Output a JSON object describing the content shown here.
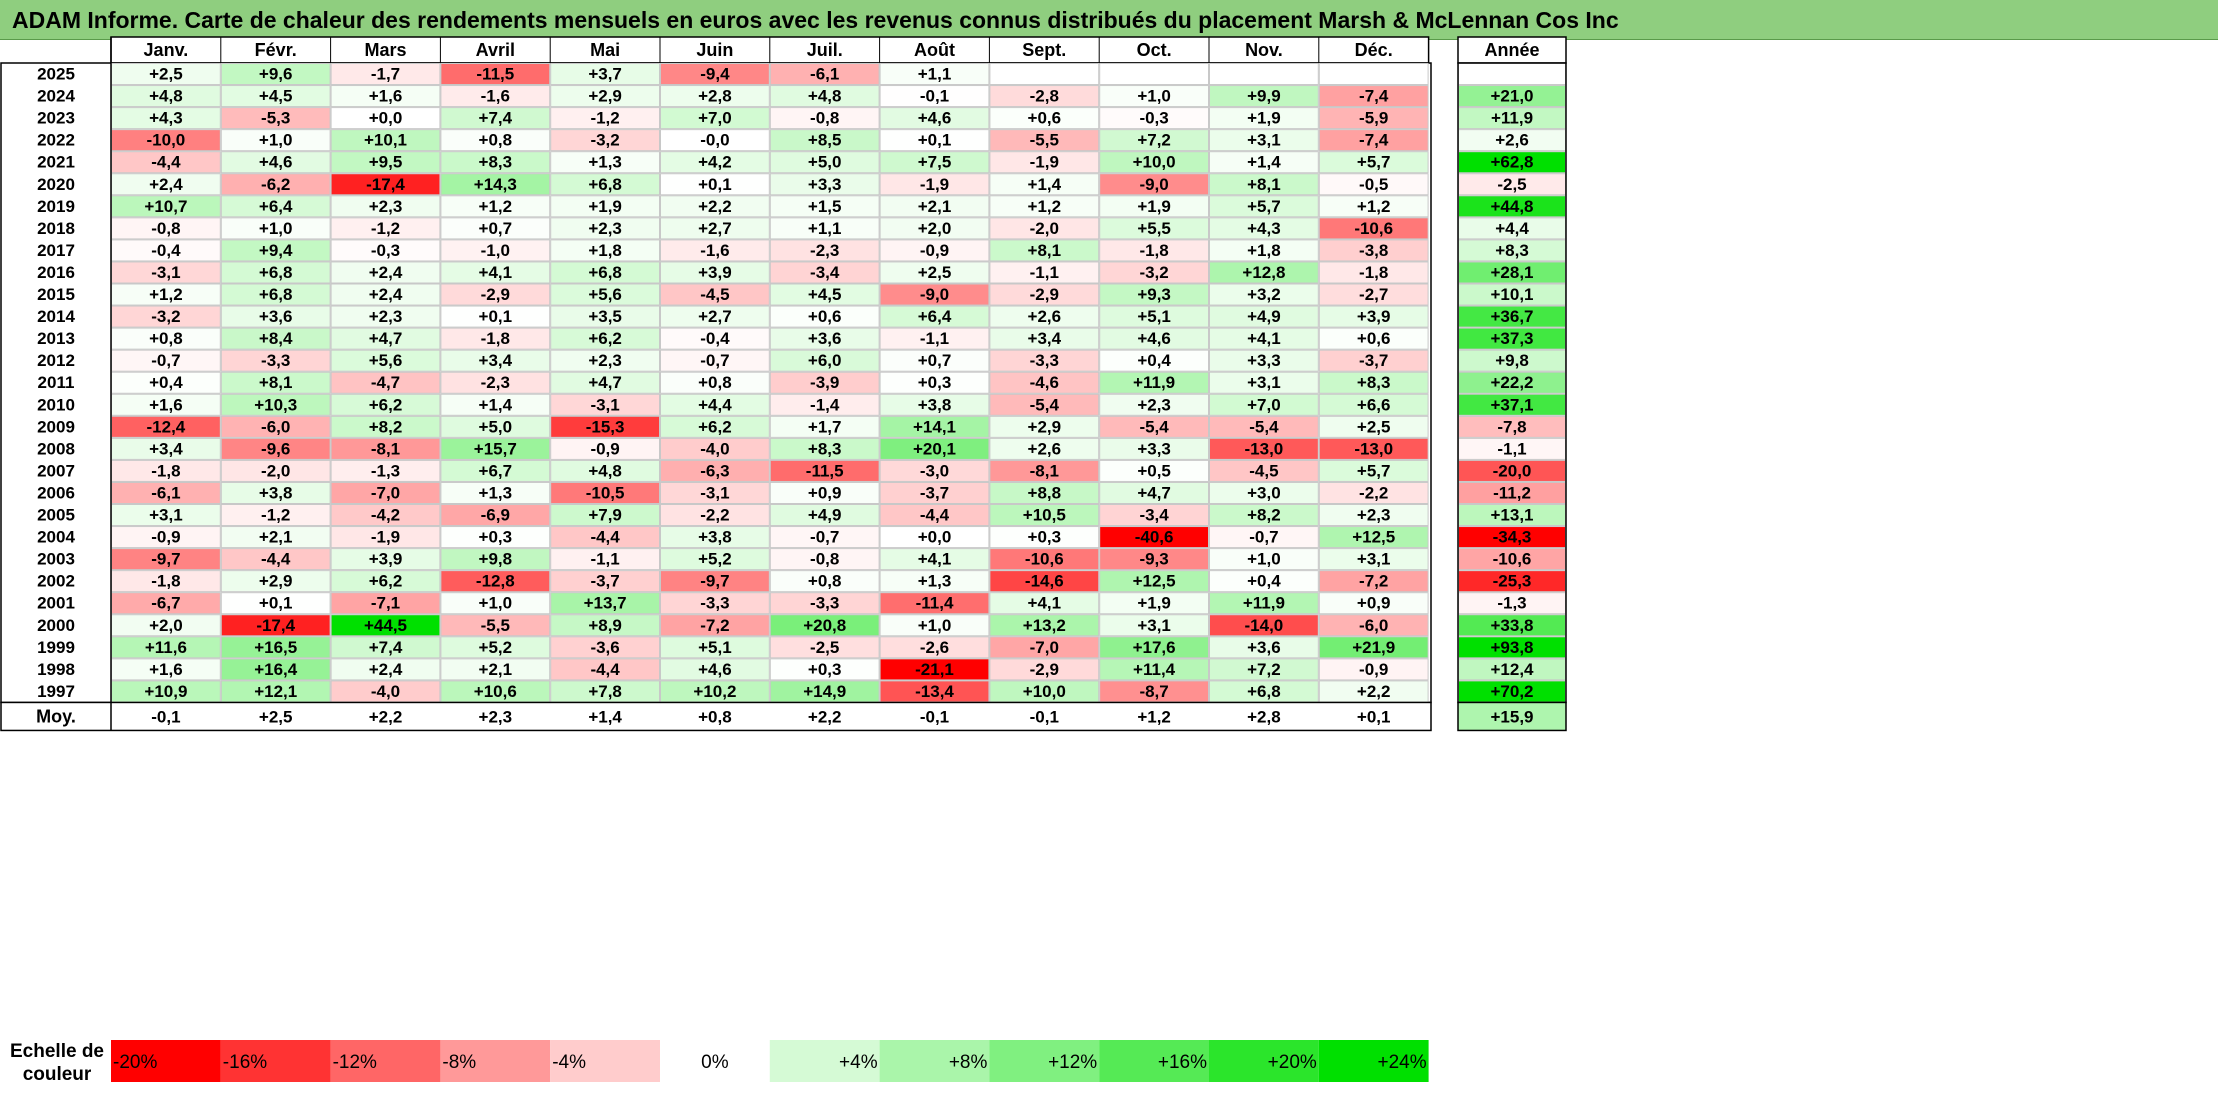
{
  "title": "ADAM Informe. Carte de chaleur des rendements mensuels en euros avec les revenus connus distribués du placement Marsh & McLennan Cos Inc",
  "chart_data": {
    "type": "heatmap",
    "months": [
      "Janv.",
      "Févr.",
      "Mars",
      "Avril",
      "Mai",
      "Juin",
      "Juil.",
      "Août",
      "Sept.",
      "Oct.",
      "Nov.",
      "Déc."
    ],
    "year_header": "Année",
    "rows": [
      {
        "year": "2025",
        "values": [
          "+2,5",
          "+9,6",
          "-1,7",
          "-11,5",
          "+3,7",
          "-9,4",
          "-6,1",
          "+1,1",
          "",
          "",
          "",
          ""
        ],
        "annual": ""
      },
      {
        "year": "2024",
        "values": [
          "+4,8",
          "+4,5",
          "+1,6",
          "-1,6",
          "+2,9",
          "+2,8",
          "+4,8",
          "-0,1",
          "-2,8",
          "+1,0",
          "+9,9",
          "-7,4"
        ],
        "annual": "+21,0"
      },
      {
        "year": "2023",
        "values": [
          "+4,3",
          "-5,3",
          "+0,0",
          "+7,4",
          "-1,2",
          "+7,0",
          "-0,8",
          "+4,6",
          "+0,6",
          "-0,3",
          "+1,9",
          "-5,9"
        ],
        "annual": "+11,9"
      },
      {
        "year": "2022",
        "values": [
          "-10,0",
          "+1,0",
          "+10,1",
          "+0,8",
          "-3,2",
          "-0,0",
          "+8,5",
          "+0,1",
          "-5,5",
          "+7,2",
          "+3,1",
          "-7,4"
        ],
        "annual": "+2,6"
      },
      {
        "year": "2021",
        "values": [
          "-4,4",
          "+4,6",
          "+9,5",
          "+8,3",
          "+1,3",
          "+4,2",
          "+5,0",
          "+7,5",
          "-1,9",
          "+10,0",
          "+1,4",
          "+5,7"
        ],
        "annual": "+62,8"
      },
      {
        "year": "2020",
        "values": [
          "+2,4",
          "-6,2",
          "-17,4",
          "+14,3",
          "+6,8",
          "+0,1",
          "+3,3",
          "-1,9",
          "+1,4",
          "-9,0",
          "+8,1",
          "-0,5"
        ],
        "annual": "-2,5"
      },
      {
        "year": "2019",
        "values": [
          "+10,7",
          "+6,4",
          "+2,3",
          "+1,2",
          "+1,9",
          "+2,2",
          "+1,5",
          "+2,1",
          "+1,2",
          "+1,9",
          "+5,7",
          "+1,2"
        ],
        "annual": "+44,8"
      },
      {
        "year": "2018",
        "values": [
          "-0,8",
          "+1,0",
          "-1,2",
          "+0,7",
          "+2,3",
          "+2,7",
          "+1,1",
          "+2,0",
          "-2,0",
          "+5,5",
          "+4,3",
          "-10,6"
        ],
        "annual": "+4,4"
      },
      {
        "year": "2017",
        "values": [
          "-0,4",
          "+9,4",
          "-0,3",
          "-1,0",
          "+1,8",
          "-1,6",
          "-2,3",
          "-0,9",
          "+8,1",
          "-1,8",
          "+1,8",
          "-3,8"
        ],
        "annual": "+8,3"
      },
      {
        "year": "2016",
        "values": [
          "-3,1",
          "+6,8",
          "+2,4",
          "+4,1",
          "+6,8",
          "+3,9",
          "-3,4",
          "+2,5",
          "-1,1",
          "-3,2",
          "+12,8",
          "-1,8"
        ],
        "annual": "+28,1"
      },
      {
        "year": "2015",
        "values": [
          "+1,2",
          "+6,8",
          "+2,4",
          "-2,9",
          "+5,6",
          "-4,5",
          "+4,5",
          "-9,0",
          "-2,9",
          "+9,3",
          "+3,2",
          "-2,7"
        ],
        "annual": "+10,1"
      },
      {
        "year": "2014",
        "values": [
          "-3,2",
          "+3,6",
          "+2,3",
          "+0,1",
          "+3,5",
          "+2,7",
          "+0,6",
          "+6,4",
          "+2,6",
          "+5,1",
          "+4,9",
          "+3,9"
        ],
        "annual": "+36,7"
      },
      {
        "year": "2013",
        "values": [
          "+0,8",
          "+8,4",
          "+4,7",
          "-1,8",
          "+6,2",
          "-0,4",
          "+3,6",
          "-1,1",
          "+3,4",
          "+4,6",
          "+4,1",
          "+0,6"
        ],
        "annual": "+37,3"
      },
      {
        "year": "2012",
        "values": [
          "-0,7",
          "-3,3",
          "+5,6",
          "+3,4",
          "+2,3",
          "-0,7",
          "+6,0",
          "+0,7",
          "-3,3",
          "+0,4",
          "+3,3",
          "-3,7"
        ],
        "annual": "+9,8"
      },
      {
        "year": "2011",
        "values": [
          "+0,4",
          "+8,1",
          "-4,7",
          "-2,3",
          "+4,7",
          "+0,8",
          "-3,9",
          "+0,3",
          "-4,6",
          "+11,9",
          "+3,1",
          "+8,3"
        ],
        "annual": "+22,2"
      },
      {
        "year": "2010",
        "values": [
          "+1,6",
          "+10,3",
          "+6,2",
          "+1,4",
          "-3,1",
          "+4,4",
          "-1,4",
          "+3,8",
          "-5,4",
          "+2,3",
          "+7,0",
          "+6,6"
        ],
        "annual": "+37,1"
      },
      {
        "year": "2009",
        "values": [
          "-12,4",
          "-6,0",
          "+8,2",
          "+5,0",
          "-15,3",
          "+6,2",
          "+1,7",
          "+14,1",
          "+2,9",
          "-5,4",
          "-5,4",
          "+2,5"
        ],
        "annual": "-7,8"
      },
      {
        "year": "2008",
        "values": [
          "+3,4",
          "-9,6",
          "-8,1",
          "+15,7",
          "-0,9",
          "-4,0",
          "+8,3",
          "+20,1",
          "+2,6",
          "+3,3",
          "-13,0",
          "-13,0"
        ],
        "annual": "-1,1"
      },
      {
        "year": "2007",
        "values": [
          "-1,8",
          "-2,0",
          "-1,3",
          "+6,7",
          "+4,8",
          "-6,3",
          "-11,5",
          "-3,0",
          "-8,1",
          "+0,5",
          "-4,5",
          "+5,7"
        ],
        "annual": "-20,0"
      },
      {
        "year": "2006",
        "values": [
          "-6,1",
          "+3,8",
          "-7,0",
          "+1,3",
          "-10,5",
          "-3,1",
          "+0,9",
          "-3,7",
          "+8,8",
          "+4,7",
          "+3,0",
          "-2,2"
        ],
        "annual": "-11,2"
      },
      {
        "year": "2005",
        "values": [
          "+3,1",
          "-1,2",
          "-4,2",
          "-6,9",
          "+7,9",
          "-2,2",
          "+4,9",
          "-4,4",
          "+10,5",
          "-3,4",
          "+8,2",
          "+2,3"
        ],
        "annual": "+13,1"
      },
      {
        "year": "2004",
        "values": [
          "-0,9",
          "+2,1",
          "-1,9",
          "+0,3",
          "-4,4",
          "+3,8",
          "-0,7",
          "+0,0",
          "+0,3",
          "-40,6",
          "-0,7",
          "+12,5"
        ],
        "annual": "-34,3"
      },
      {
        "year": "2003",
        "values": [
          "-9,7",
          "-4,4",
          "+3,9",
          "+9,8",
          "-1,1",
          "+5,2",
          "-0,8",
          "+4,1",
          "-10,6",
          "-9,3",
          "+1,0",
          "+3,1"
        ],
        "annual": "-10,6"
      },
      {
        "year": "2002",
        "values": [
          "-1,8",
          "+2,9",
          "+6,2",
          "-12,8",
          "-3,7",
          "-9,7",
          "+0,8",
          "+1,3",
          "-14,6",
          "+12,5",
          "+0,4",
          "-7,2"
        ],
        "annual": "-25,3"
      },
      {
        "year": "2001",
        "values": [
          "-6,7",
          "+0,1",
          "-7,1",
          "+1,0",
          "+13,7",
          "-3,3",
          "-3,3",
          "-11,4",
          "+4,1",
          "+1,9",
          "+11,9",
          "+0,9"
        ],
        "annual": "-1,3"
      },
      {
        "year": "2000",
        "values": [
          "+2,0",
          "-17,4",
          "+44,5",
          "-5,5",
          "+8,9",
          "-7,2",
          "+20,8",
          "+1,0",
          "+13,2",
          "+3,1",
          "-14,0",
          "-6,0"
        ],
        "annual": "+33,8"
      },
      {
        "year": "1999",
        "values": [
          "+11,6",
          "+16,5",
          "+7,4",
          "+5,2",
          "-3,6",
          "+5,1",
          "-2,5",
          "-2,6",
          "-7,0",
          "+17,6",
          "+3,6",
          "+21,9"
        ],
        "annual": "+93,8"
      },
      {
        "year": "1998",
        "values": [
          "+1,6",
          "+16,4",
          "+2,4",
          "+2,1",
          "-4,4",
          "+4,6",
          "+0,3",
          "-21,1",
          "-2,9",
          "+11,4",
          "+7,2",
          "-0,9"
        ],
        "annual": "+12,4"
      },
      {
        "year": "1997",
        "values": [
          "+10,9",
          "+12,1",
          "-4,0",
          "+10,6",
          "+7,8",
          "+10,2",
          "+14,9",
          "-13,4",
          "+10,0",
          "-8,7",
          "+6,8",
          "+2,2"
        ],
        "annual": "+70,2"
      }
    ],
    "average": {
      "label": "Moy.",
      "values": [
        "-0,1",
        "+2,5",
        "+2,2",
        "+2,3",
        "+1,4",
        "+0,8",
        "+2,2",
        "-0,1",
        "-0,1",
        "+1,2",
        "+2,8",
        "+0,1"
      ],
      "annual": "+15,9"
    },
    "scale": {
      "label_line1": "Echelle de",
      "label_line2": "couleur",
      "stops": [
        "-20%",
        "-16%",
        "-12%",
        "-8%",
        "-4%",
        "0%",
        "+4%",
        "+8%",
        "+12%",
        "+16%",
        "+20%",
        "+24%"
      ],
      "stop_values": [
        -20,
        -16,
        -12,
        -8,
        -4,
        0,
        4,
        8,
        12,
        16,
        20,
        24
      ],
      "min_color": "#ff0000",
      "mid_color": "#ffffff",
      "max_color": "#00e000"
    }
  }
}
